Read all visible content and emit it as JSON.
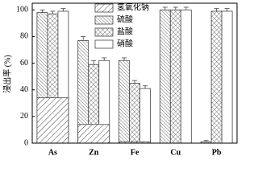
{
  "chart_data": {
    "type": "bar",
    "y_label": "浸出率 (%)",
    "categories": [
      "As",
      "Zn",
      "Fe",
      "Cu",
      "Pb"
    ],
    "series": [
      {
        "name": "氢氧化钠",
        "color": "#444444",
        "hatch": "diag",
        "values": [
          34,
          14,
          1,
          0,
          0
        ]
      },
      {
        "name": "硫酸",
        "color": "#444444",
        "hatch": "back",
        "values": [
          98,
          77,
          62,
          100,
          1
        ],
        "errors": [
          2,
          3,
          2,
          2,
          1
        ]
      },
      {
        "name": "盐酸",
        "color": "#444444",
        "hatch": "cross",
        "values": [
          97,
          59,
          45,
          100,
          99
        ],
        "errors": [
          2,
          3,
          2,
          2,
          2
        ]
      },
      {
        "name": "硝酸",
        "color": "#444444",
        "hatch": "none",
        "values": [
          99,
          62,
          41,
          100,
          99
        ],
        "errors": [
          2,
          2,
          2,
          2,
          2
        ]
      }
    ],
    "ylim": [
      0,
      105
    ],
    "yticks": [
      0,
      20,
      40,
      60,
      80,
      100
    ],
    "legend": "top-center"
  }
}
